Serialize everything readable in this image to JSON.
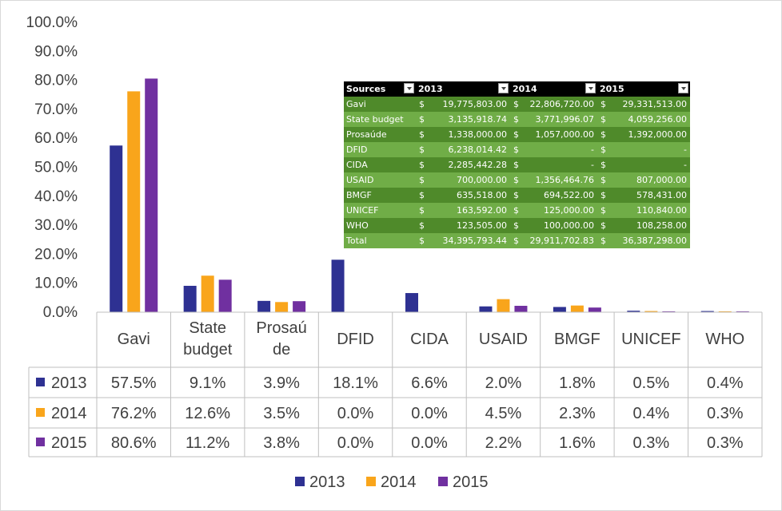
{
  "chart_data": {
    "type": "bar",
    "title": "",
    "xlabel": "",
    "ylabel": "",
    "ylim": [
      0,
      100
    ],
    "y_ticks": [
      "0.0%",
      "10.0%",
      "20.0%",
      "30.0%",
      "40.0%",
      "50.0%",
      "60.0%",
      "70.0%",
      "80.0%",
      "90.0%",
      "100.0%"
    ],
    "grid": false,
    "legend_position": "bottom",
    "categories": [
      [
        "Gavi"
      ],
      [
        "State",
        "budget"
      ],
      [
        "Prosaú",
        "de"
      ],
      [
        "DFID"
      ],
      [
        "CIDA"
      ],
      [
        "USAID"
      ],
      [
        "BMGF"
      ],
      [
        "UNICEF"
      ],
      [
        "WHO"
      ]
    ],
    "series": [
      {
        "name": "2013",
        "color": "#2e3192",
        "values": [
          57.5,
          9.1,
          3.9,
          18.1,
          6.6,
          2.0,
          1.8,
          0.5,
          0.4
        ],
        "labels": [
          "57.5%",
          "9.1%",
          "3.9%",
          "18.1%",
          "6.6%",
          "2.0%",
          "1.8%",
          "0.5%",
          "0.4%"
        ]
      },
      {
        "name": "2014",
        "color": "#f9a51b",
        "values": [
          76.2,
          12.6,
          3.5,
          0.0,
          0.0,
          4.5,
          2.3,
          0.4,
          0.3
        ],
        "labels": [
          "76.2%",
          "12.6%",
          "3.5%",
          "0.0%",
          "0.0%",
          "4.5%",
          "2.3%",
          "0.4%",
          "0.3%"
        ]
      },
      {
        "name": "2015",
        "color": "#7030a0",
        "values": [
          80.6,
          11.2,
          3.8,
          0.0,
          0.0,
          2.2,
          1.6,
          0.3,
          0.3
        ],
        "labels": [
          "80.6%",
          "11.2%",
          "3.8%",
          "0.0%",
          "0.0%",
          "2.2%",
          "1.6%",
          "0.3%",
          "0.3%"
        ]
      }
    ]
  },
  "overlay_table": {
    "headers": [
      "Sources",
      "2013",
      "2014",
      "2015"
    ],
    "rows": [
      {
        "source": "Gavi",
        "values": [
          "19,775,803.00",
          "22,806,720.00",
          "29,331,513.00"
        ]
      },
      {
        "source": "State budget",
        "values": [
          "3,135,918.74",
          "3,771,996.07",
          "4,059,256.00"
        ]
      },
      {
        "source": "Prosaúde",
        "values": [
          "1,338,000.00",
          "1,057,000.00",
          "1,392,000.00"
        ]
      },
      {
        "source": "DFID",
        "values": [
          "6,238,014.42",
          "-",
          "-"
        ]
      },
      {
        "source": "CIDA",
        "values": [
          "2,285,442.28",
          "-",
          "-"
        ]
      },
      {
        "source": "USAID",
        "values": [
          "700,000.00",
          "1,356,464.76",
          "807,000.00"
        ]
      },
      {
        "source": "BMGF",
        "values": [
          "635,518.00",
          "694,522.00",
          "578,431.00"
        ]
      },
      {
        "source": "UNICEF",
        "values": [
          "163,592.00",
          "125,000.00",
          "110,840.00"
        ]
      },
      {
        "source": "WHO",
        "values": [
          "123,505.00",
          "100,000.00",
          "108,258.00"
        ]
      },
      {
        "source": "Total",
        "values": [
          "34,395,793.44",
          "29,911,702.83",
          "36,387,298.00"
        ]
      }
    ],
    "currency_symbol": "$"
  }
}
